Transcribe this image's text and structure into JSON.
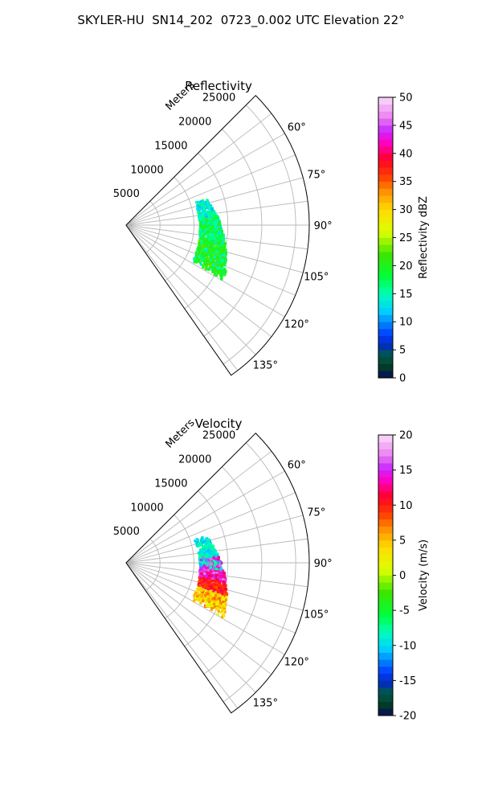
{
  "figure_title": "SKYLER-HU  SN14_202  0723_0.002 UTC Elevation 22°",
  "chart_data": [
    {
      "type": "heatmap",
      "title": "Reflectivity",
      "projection": "polar sector",
      "radial_label": "Meters",
      "radial_ticks": [
        5000,
        10000,
        15000,
        20000,
        25000
      ],
      "radial_range": [
        0,
        27000
      ],
      "angular_range_deg": [
        45,
        145
      ],
      "angular_ticks": [
        60,
        75,
        90,
        105,
        120,
        135
      ],
      "angular_tick_labels": [
        "60°",
        "75°",
        "90°",
        "105°",
        "120°",
        "135°"
      ],
      "grid": true,
      "colorbar": {
        "label": "Reflectivity dBZ",
        "range": [
          0,
          50
        ],
        "ticks": [
          0,
          5,
          10,
          15,
          20,
          25,
          30,
          35,
          40,
          45,
          50
        ],
        "colormap": "pyart NWSRef-like (navy, blue, cyan, green, yellow, orange, red, magenta, pink)"
      },
      "echo_summary": {
        "azimuth_extent_deg": [
          73,
          118
        ],
        "range_extent_m": [
          11000,
          17000
        ],
        "typical_value_range": [
          12,
          22
        ]
      }
    },
    {
      "type": "heatmap",
      "title": "Velocity",
      "projection": "polar sector",
      "radial_label": "Meters",
      "radial_ticks": [
        5000,
        10000,
        15000,
        20000,
        25000
      ],
      "radial_range": [
        0,
        27000
      ],
      "angular_range_deg": [
        45,
        145
      ],
      "angular_ticks": [
        60,
        75,
        90,
        105,
        120,
        135
      ],
      "angular_tick_labels": [
        "60°",
        "75°",
        "90°",
        "105°",
        "120°",
        "135°"
      ],
      "grid": true,
      "colorbar": {
        "label": "Velocity (m/s)",
        "range": [
          -20,
          20
        ],
        "ticks": [
          -20,
          -15,
          -10,
          -5,
          0,
          5,
          10,
          15,
          20
        ],
        "colormap": "pyart NWSVel-like (navy, blue, cyan, green, yellow, orange, red, magenta, pink)"
      },
      "echo_summary": {
        "azimuth_extent_deg": [
          73,
          118
        ],
        "range_extent_m": [
          11000,
          17000
        ],
        "typical_value_range": [
          -12,
          12
        ]
      }
    }
  ]
}
